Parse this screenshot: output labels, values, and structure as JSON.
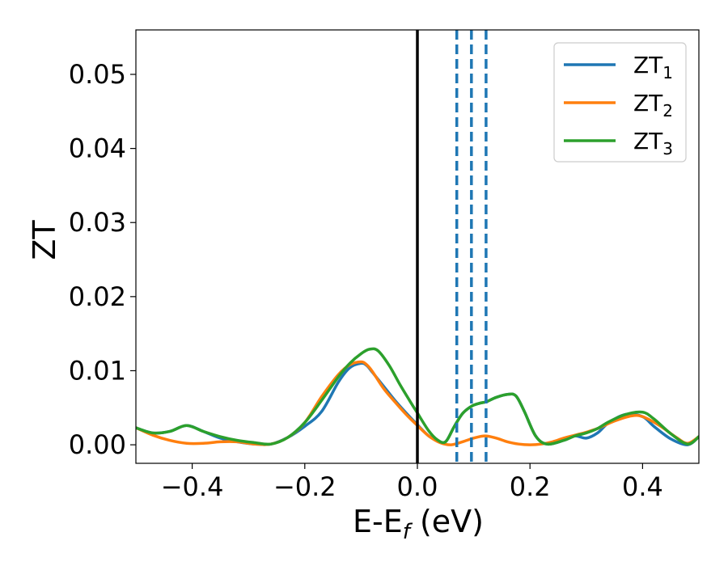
{
  "chart_data": {
    "type": "line",
    "xlabel_main": "E-E",
    "xlabel_sub": "f",
    "xlabel_unit": " (eV)",
    "ylabel": "ZT",
    "xlim": [
      -0.5,
      0.5
    ],
    "ylim": [
      -0.0025,
      0.056
    ],
    "xticks": [
      -0.4,
      -0.2,
      0.0,
      0.2,
      0.4
    ],
    "xtick_labels": [
      "−0.4",
      "−0.2",
      "0.0",
      "0.2",
      "0.4"
    ],
    "yticks": [
      0.0,
      0.01,
      0.02,
      0.03,
      0.04,
      0.05
    ],
    "ytick_labels": [
      "0.00",
      "0.01",
      "0.02",
      "0.03",
      "0.04",
      "0.05"
    ],
    "grid": false,
    "legend_position": "top-right",
    "solid_vline": {
      "x": 0.0,
      "color": "#000000"
    },
    "dashed_vlines": {
      "x": [
        0.07,
        0.096,
        0.122
      ],
      "color": "#1f77b4"
    },
    "series": [
      {
        "name": "ZT",
        "name_sub": "1",
        "color": "#1f77b4",
        "x": [
          -0.5,
          -0.47,
          -0.44,
          -0.41,
          -0.38,
          -0.35,
          -0.32,
          -0.29,
          -0.26,
          -0.23,
          -0.2,
          -0.17,
          -0.14,
          -0.12,
          -0.1,
          -0.09,
          -0.08,
          -0.06,
          -0.04,
          -0.02,
          0.0,
          0.02,
          0.035,
          0.05,
          0.065,
          0.08,
          0.096,
          0.11,
          0.122,
          0.14,
          0.16,
          0.175,
          0.19,
          0.21,
          0.23,
          0.26,
          0.28,
          0.3,
          0.32,
          0.34,
          0.37,
          0.4,
          0.42,
          0.45,
          0.48,
          0.5
        ],
        "y": [
          0.0023,
          0.0016,
          0.0018,
          0.0026,
          0.0018,
          0.0009,
          0.0004,
          0.0001,
          0.0001,
          0.001,
          0.0025,
          0.0045,
          0.0085,
          0.0104,
          0.011,
          0.0107,
          0.0098,
          0.0079,
          0.006,
          0.0043,
          0.0027,
          0.0012,
          0.0006,
          0.0004,
          0.0024,
          0.0042,
          0.0052,
          0.0056,
          0.0058,
          0.0064,
          0.0068,
          0.0066,
          0.0045,
          0.0012,
          0.0001,
          0.0006,
          0.0012,
          0.0009,
          0.0016,
          0.003,
          0.0041,
          0.0038,
          0.0025,
          0.0008,
          0.0,
          0.0011
        ]
      },
      {
        "name": "ZT",
        "name_sub": "2",
        "color": "#ff7f0e",
        "x": [
          -0.5,
          -0.47,
          -0.44,
          -0.41,
          -0.38,
          -0.35,
          -0.32,
          -0.29,
          -0.26,
          -0.23,
          -0.2,
          -0.17,
          -0.14,
          -0.12,
          -0.1,
          -0.09,
          -0.08,
          -0.06,
          -0.04,
          -0.02,
          0.0,
          0.02,
          0.04,
          0.06,
          0.08,
          0.1,
          0.12,
          0.14,
          0.16,
          0.18,
          0.2,
          0.22,
          0.24,
          0.26,
          0.28,
          0.3,
          0.32,
          0.35,
          0.38,
          0.4,
          0.43,
          0.46,
          0.48,
          0.5
        ],
        "y": [
          0.0023,
          0.0013,
          0.0006,
          0.0002,
          0.0002,
          0.0004,
          0.0004,
          0.0001,
          0.0001,
          0.001,
          0.003,
          0.0065,
          0.0095,
          0.0108,
          0.0112,
          0.0108,
          0.0099,
          0.0076,
          0.0058,
          0.0041,
          0.0026,
          0.0012,
          0.0003,
          0.0,
          0.0004,
          0.0009,
          0.0012,
          0.0009,
          0.0004,
          0.0001,
          0.0,
          0.0001,
          0.0004,
          0.0009,
          0.0013,
          0.0017,
          0.0022,
          0.0032,
          0.0039,
          0.0038,
          0.0026,
          0.001,
          0.0002,
          0.0011
        ]
      },
      {
        "name": "ZT",
        "name_sub": "3",
        "color": "#2ca02c",
        "x": [
          -0.5,
          -0.47,
          -0.44,
          -0.41,
          -0.38,
          -0.35,
          -0.32,
          -0.29,
          -0.26,
          -0.23,
          -0.2,
          -0.17,
          -0.14,
          -0.12,
          -0.1,
          -0.085,
          -0.07,
          -0.05,
          -0.03,
          -0.01,
          0.0,
          0.02,
          0.035,
          0.05,
          0.065,
          0.08,
          0.096,
          0.11,
          0.122,
          0.14,
          0.16,
          0.175,
          0.19,
          0.21,
          0.23,
          0.26,
          0.28,
          0.3,
          0.32,
          0.34,
          0.37,
          0.4,
          0.42,
          0.45,
          0.48,
          0.5
        ],
        "y": [
          0.0023,
          0.0016,
          0.0018,
          0.0026,
          0.0018,
          0.0011,
          0.0006,
          0.0003,
          0.0001,
          0.001,
          0.003,
          0.006,
          0.0092,
          0.011,
          0.0123,
          0.0129,
          0.0127,
          0.0107,
          0.008,
          0.0055,
          0.0043,
          0.0019,
          0.0007,
          0.0004,
          0.0024,
          0.0042,
          0.0052,
          0.0056,
          0.0058,
          0.0064,
          0.0068,
          0.0066,
          0.0045,
          0.0012,
          0.0001,
          0.0006,
          0.0012,
          0.0016,
          0.0022,
          0.0031,
          0.0041,
          0.0044,
          0.0035,
          0.0015,
          0.0001,
          0.0011
        ]
      }
    ]
  }
}
